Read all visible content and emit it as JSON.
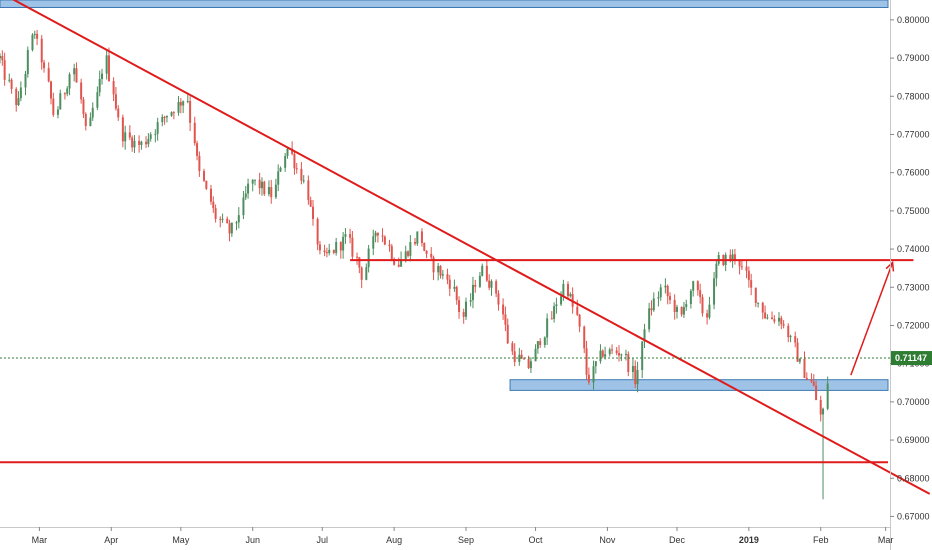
{
  "chart_data": {
    "type": "candlestick",
    "title": "",
    "xlabel": "",
    "ylabel": "",
    "x_ticks": [
      "Mar",
      "Apr",
      "May",
      "Jun",
      "Jul",
      "Aug",
      "Sep",
      "Oct",
      "Nov",
      "Dec",
      "2019",
      "Feb",
      "Mar"
    ],
    "y_ticks": [
      "0.80000",
      "0.79000",
      "0.78000",
      "0.77000",
      "0.76000",
      "0.75000",
      "0.74000",
      "0.73000",
      "0.72000",
      "0.71000",
      "0.70000",
      "0.69000",
      "0.68000",
      "0.67000"
    ],
    "ylim": [
      0.665,
      0.8052
    ],
    "grid": false,
    "current_price": 0.71147,
    "current_price_label": "0.71147",
    "price_path": [
      {
        "x": "2018-02-12",
        "y": 0.79
      },
      {
        "x": "2018-02-20",
        "y": 0.777
      },
      {
        "x": "2018-02-27",
        "y": 0.798
      },
      {
        "x": "2018-03-08",
        "y": 0.775
      },
      {
        "x": "2018-03-16",
        "y": 0.788
      },
      {
        "x": "2018-03-22",
        "y": 0.77
      },
      {
        "x": "2018-03-30",
        "y": 0.79
      },
      {
        "x": "2018-04-06",
        "y": 0.77
      },
      {
        "x": "2018-04-14",
        "y": 0.767
      },
      {
        "x": "2018-04-25",
        "y": 0.775
      },
      {
        "x": "2018-05-04",
        "y": 0.78
      },
      {
        "x": "2018-05-09",
        "y": 0.761
      },
      {
        "x": "2018-05-16",
        "y": 0.749
      },
      {
        "x": "2018-05-23",
        "y": 0.744
      },
      {
        "x": "2018-06-01",
        "y": 0.758
      },
      {
        "x": "2018-06-10",
        "y": 0.754
      },
      {
        "x": "2018-06-16",
        "y": 0.767
      },
      {
        "x": "2018-06-24",
        "y": 0.757
      },
      {
        "x": "2018-07-01",
        "y": 0.737
      },
      {
        "x": "2018-07-12",
        "y": 0.743
      },
      {
        "x": "2018-07-19",
        "y": 0.733
      },
      {
        "x": "2018-07-25",
        "y": 0.746
      },
      {
        "x": "2018-08-03",
        "y": 0.736
      },
      {
        "x": "2018-08-12",
        "y": 0.744
      },
      {
        "x": "2018-08-16",
        "y": 0.737
      },
      {
        "x": "2018-08-26",
        "y": 0.731
      },
      {
        "x": "2018-08-31",
        "y": 0.722
      },
      {
        "x": "2018-09-08",
        "y": 0.735
      },
      {
        "x": "2018-09-15",
        "y": 0.728
      },
      {
        "x": "2018-09-21",
        "y": 0.713
      },
      {
        "x": "2018-09-28",
        "y": 0.709
      },
      {
        "x": "2018-10-08",
        "y": 0.722
      },
      {
        "x": "2018-10-14",
        "y": 0.731
      },
      {
        "x": "2018-10-20",
        "y": 0.721
      },
      {
        "x": "2018-10-24",
        "y": 0.705
      },
      {
        "x": "2018-10-30",
        "y": 0.713
      },
      {
        "x": "2018-11-08",
        "y": 0.713
      },
      {
        "x": "2018-11-14",
        "y": 0.705
      },
      {
        "x": "2018-11-18",
        "y": 0.722
      },
      {
        "x": "2018-11-25",
        "y": 0.73
      },
      {
        "x": "2018-12-03",
        "y": 0.722
      },
      {
        "x": "2018-12-08",
        "y": 0.731
      },
      {
        "x": "2018-12-14",
        "y": 0.722
      },
      {
        "x": "2018-12-19",
        "y": 0.737
      },
      {
        "x": "2018-12-27",
        "y": 0.738
      },
      {
        "x": "2019-01-03",
        "y": 0.729
      },
      {
        "x": "2019-01-09",
        "y": 0.722
      },
      {
        "x": "2019-01-15",
        "y": 0.722
      },
      {
        "x": "2019-01-21",
        "y": 0.714
      },
      {
        "x": "2019-01-25",
        "y": 0.708
      },
      {
        "x": "2019-01-30",
        "y": 0.703
      },
      {
        "x": "2019-02-02",
        "y": 0.694
      },
      {
        "x": "2019-02-05",
        "y": 0.711
      }
    ],
    "flash_crash_low": {
      "x": "2019-02-03",
      "y": 0.6745
    },
    "annotations": {
      "top_resistance_zone": {
        "from": 0.8035,
        "to": 0.8052,
        "color": "#9ec3e6"
      },
      "support_zone": {
        "from": 0.703,
        "to": 0.7058,
        "start": "2018-09-20",
        "color": "#9ec3e6"
      },
      "resistance_line": {
        "y": 0.7371,
        "start": "2018-07-13",
        "end": "2019-03-13",
        "color": "#e01b1b"
      },
      "bottom_support_line": {
        "y": 0.6842,
        "color": "#e01b1b"
      },
      "trendline": {
        "start": {
          "x": "2018-02-12",
          "y": 0.8072
        },
        "end": {
          "x": "2019-03-20",
          "y": 0.6759
        },
        "color": "#e01b1b"
      },
      "projection_arrow": {
        "start": {
          "x": "2019-02-14",
          "y": 0.707
        },
        "end": {
          "x": "2019-03-04",
          "y": 0.7365
        },
        "color": "#e01b1b"
      }
    },
    "colors": {
      "up": "#4c8e5f",
      "down": "#e0554e",
      "current_price_line": "#2f7d32"
    }
  }
}
